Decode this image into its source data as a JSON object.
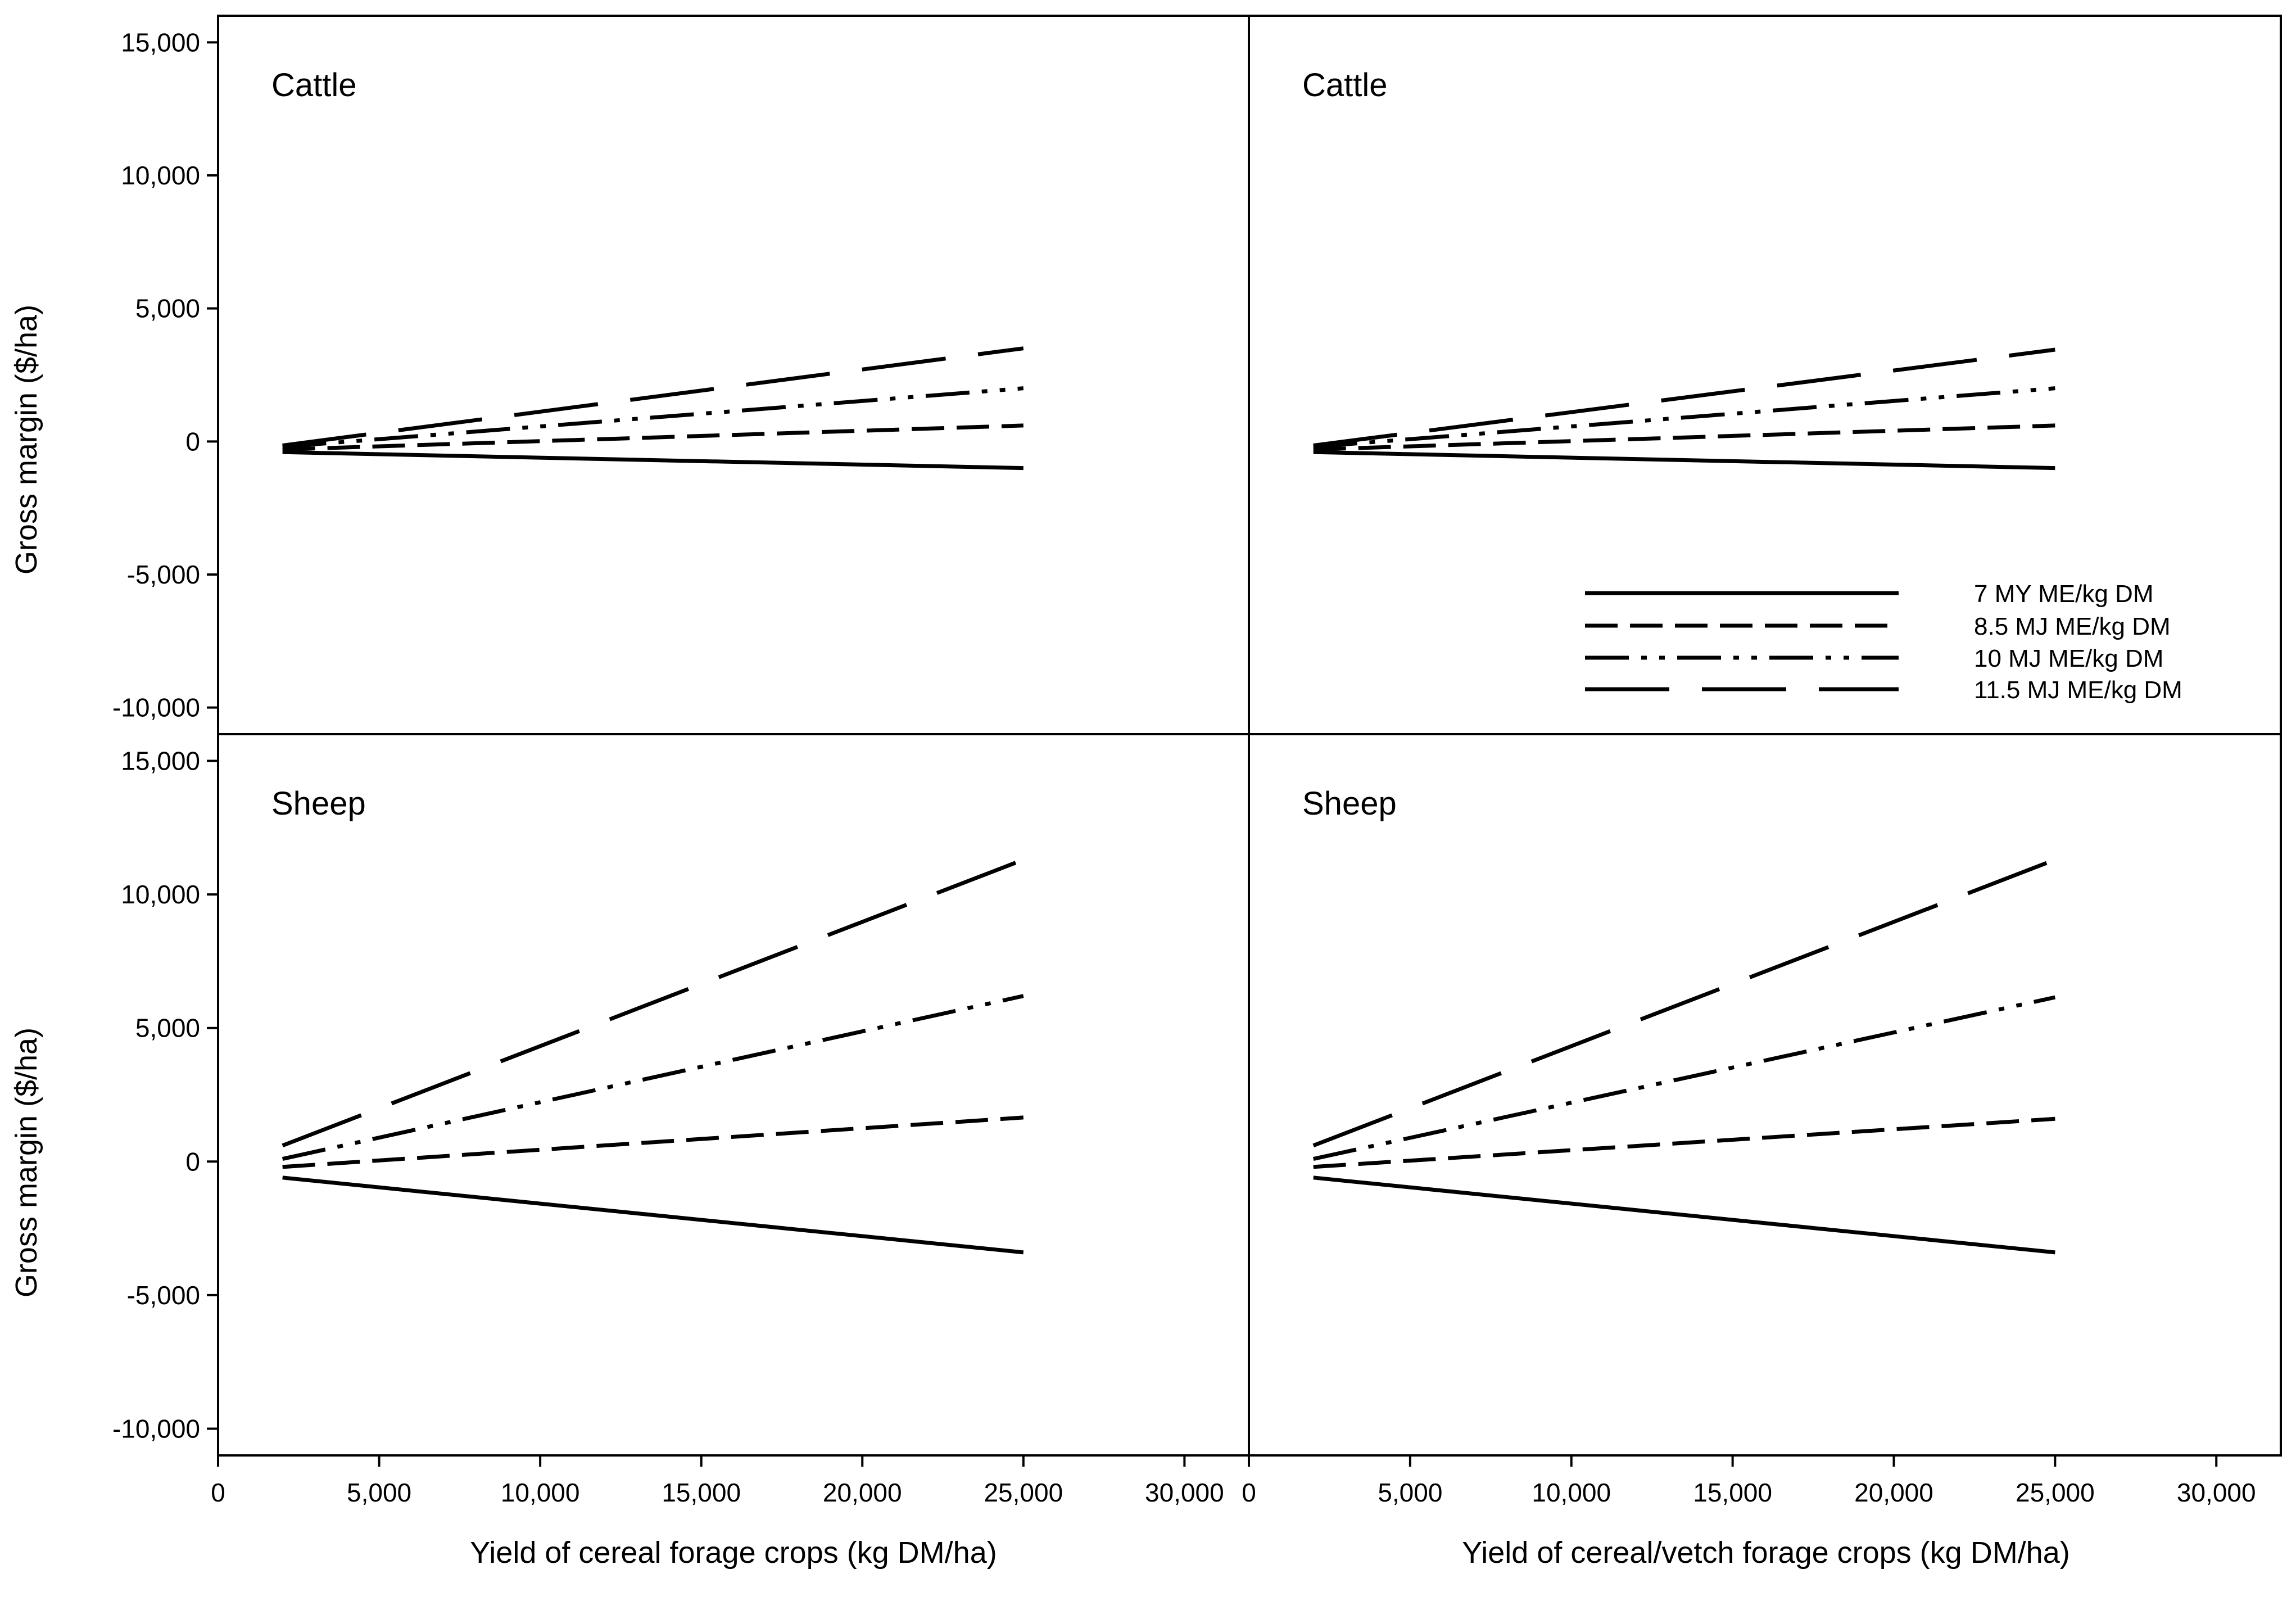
{
  "chart_data": {
    "type": "line",
    "layout": "2x2 panel grid",
    "xlabel_left": "Yield of cereal forage crops (kg DM/ha)",
    "xlabel_right": "Yield of cereal/vetch forage crops (kg DM/ha)",
    "ylabel": "Gross margin ($/ha)",
    "xlim": [
      0,
      32000
    ],
    "ylim": [
      -11000,
      16000
    ],
    "x_ticks": [
      0,
      5000,
      10000,
      15000,
      20000,
      25000,
      30000
    ],
    "x_tick_labels": [
      "0",
      "5,000",
      "10,000",
      "15,000",
      "20,000",
      "25,000",
      "30,000"
    ],
    "y_ticks": [
      -10000,
      -5000,
      0,
      5000,
      10000,
      15000
    ],
    "y_tick_labels": [
      "-10,000",
      "-5,000",
      "0",
      "5,000",
      "10,000",
      "15,000"
    ],
    "legend": {
      "placement": "bottom-right of top-right panel",
      "entries": [
        "7 MY ME/kg DM",
        "8.5 MJ ME/kg DM",
        "10 MJ ME/kg DM",
        "11.5 MJ ME/kg DM"
      ]
    },
    "styles": [
      {
        "name": "7 MY ME/kg DM",
        "dash": "solid"
      },
      {
        "name": "8.5 MJ ME/kg DM",
        "dash": "short dash"
      },
      {
        "name": "10 MJ ME/kg DM",
        "dash": "dash-dot-dot"
      },
      {
        "name": "11.5 MJ ME/kg DM",
        "dash": "long dash"
      }
    ],
    "panels": [
      {
        "title": "Cattle",
        "crop": "cereal",
        "x": [
          2000,
          25000
        ],
        "series": [
          {
            "name": "7 MY ME/kg DM",
            "values": [
              -400,
              -1000
            ]
          },
          {
            "name": "8.5 MJ ME/kg DM",
            "values": [
              -300,
              600
            ]
          },
          {
            "name": "10 MJ ME/kg DM",
            "values": [
              -200,
              2000
            ]
          },
          {
            "name": "11.5 MJ ME/kg DM",
            "values": [
              -150,
              3500
            ]
          }
        ]
      },
      {
        "title": "Cattle",
        "crop": "cereal/vetch",
        "x": [
          2000,
          25000
        ],
        "series": [
          {
            "name": "7 MY ME/kg DM",
            "values": [
              -400,
              -1000
            ]
          },
          {
            "name": "8.5 MJ ME/kg DM",
            "values": [
              -300,
              600
            ]
          },
          {
            "name": "10 MJ ME/kg DM",
            "values": [
              -200,
              2000
            ]
          },
          {
            "name": "11.5 MJ ME/kg DM",
            "values": [
              -150,
              3450
            ]
          }
        ]
      },
      {
        "title": "Sheep",
        "crop": "cereal",
        "x": [
          2000,
          25000
        ],
        "series": [
          {
            "name": "7 MY ME/kg DM",
            "values": [
              -600,
              -3400
            ]
          },
          {
            "name": "8.5 MJ ME/kg DM",
            "values": [
              -200,
              1650
            ]
          },
          {
            "name": "10 MJ ME/kg DM",
            "values": [
              100,
              6200
            ]
          },
          {
            "name": "11.5 MJ ME/kg DM",
            "values": [
              600,
              11300
            ]
          }
        ]
      },
      {
        "title": "Sheep",
        "crop": "cereal/vetch",
        "x": [
          2000,
          25000
        ],
        "series": [
          {
            "name": "7 MY ME/kg DM",
            "values": [
              -600,
              -3400
            ]
          },
          {
            "name": "8.5 MJ ME/kg DM",
            "values": [
              -200,
              1600
            ]
          },
          {
            "name": "10 MJ ME/kg DM",
            "values": [
              100,
              6150
            ]
          },
          {
            "name": "11.5 MJ ME/kg DM",
            "values": [
              600,
              11300
            ]
          }
        ]
      }
    ]
  }
}
